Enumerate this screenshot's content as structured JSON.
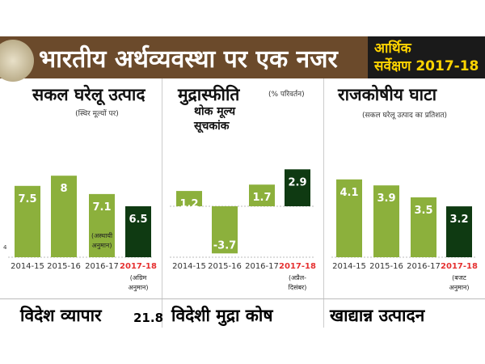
{
  "header": {
    "title": "भारतीय अर्थव्यवस्था पर एक नजर",
    "badge_line1": "आर्थिक",
    "badge_line2": "सर्वेक्षण 2017-18"
  },
  "colors": {
    "bar": "#8cb03c",
    "highlight_bar": "#0f3a12",
    "header": "#6b4a2b",
    "highlight_label": "#e53030"
  },
  "chart_data": [
    {
      "type": "bar",
      "title": "सकल घरेलू उत्पाद",
      "subtitle": "(स्थिर मूल्यों पर)",
      "categories": [
        "2014-15",
        "2015-16",
        "2016-17",
        "2017-18"
      ],
      "values": [
        7.5,
        8.0,
        7.1,
        6.5
      ],
      "ylim": [
        4,
        9
      ],
      "y_tick": "4",
      "notes": [
        "",
        "",
        "(अस्थायी अनुमान)",
        "(अग्रिम अनुमान)"
      ]
    },
    {
      "type": "bar",
      "title": "मुद्रास्फीति",
      "title_note": "(% परिवर्तन)",
      "subtitle": "थोक मूल्य सूचकांक",
      "categories": [
        "2014-15",
        "2015-16",
        "2016-17",
        "2017-18"
      ],
      "values": [
        1.2,
        -3.7,
        1.7,
        2.9
      ],
      "ylim": [
        -4,
        4
      ],
      "notes": [
        "",
        "",
        "",
        "(अप्रैल-दिसंबर)"
      ]
    },
    {
      "type": "bar",
      "title": "राजकोषीय घाटा",
      "subtitle": "(सकल घरेलू उत्पाद का प्रतिशत)",
      "categories": [
        "2014-15",
        "2015-16",
        "2016-17",
        "2017-18"
      ],
      "values": [
        4.1,
        3.9,
        3.5,
        3.2
      ],
      "ylim": [
        1.5,
        4.5
      ],
      "notes": [
        "",
        "",
        "",
        "(बजट अनुमान)"
      ]
    }
  ],
  "bottom": [
    {
      "title": "विदेश व्यापार",
      "value": "21.8"
    },
    {
      "title": "विदेशी मुद्रा कोष"
    },
    {
      "title": "खाद्यान्न उत्पादन"
    }
  ]
}
